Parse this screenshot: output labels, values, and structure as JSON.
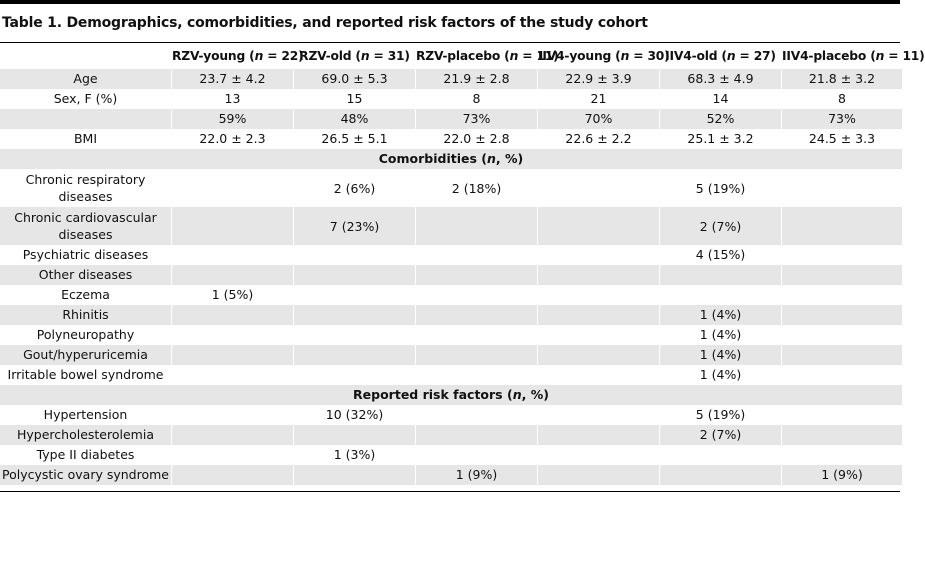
{
  "title": "Table 1. Demographics, comorbidities, and reported risk factors of the study cohort",
  "columns": [
    "",
    "RZV-young (n = 22)",
    "RZV-old (n = 31)",
    "RZV-placebo (n = 11)",
    "IIV4-young (n = 30)",
    "IIV4-old (n = 27)",
    "IIV4-placebo (n = 11)"
  ],
  "rows": [
    {
      "type": "data",
      "shade": true,
      "cells": [
        "Age",
        "23.7 ± 4.2",
        "69.0 ± 5.3",
        "21.9 ± 2.8",
        "22.9 ± 3.9",
        "68.3 ± 4.9",
        "21.8 ± 3.2"
      ]
    },
    {
      "type": "data",
      "shade": false,
      "cells": [
        "Sex, F (%)",
        "13",
        "15",
        "8",
        "21",
        "14",
        "8"
      ]
    },
    {
      "type": "data",
      "shade": true,
      "cells": [
        "",
        "59%",
        "48%",
        "73%",
        "70%",
        "52%",
        "73%"
      ]
    },
    {
      "type": "data",
      "shade": false,
      "cells": [
        "BMI",
        "22.0 ± 2.3",
        "26.5 ± 5.1",
        "22.0 ± 2.8",
        "22.6 ± 2.2",
        "25.1 ± 3.2",
        "24.5 ± 3.3"
      ]
    },
    {
      "type": "section",
      "shade": true,
      "label": "Comorbidities (n, %)"
    },
    {
      "type": "data",
      "shade": false,
      "wrap": true,
      "cells": [
        "Chronic respiratory diseases",
        "",
        "2 (6%)",
        "2 (18%)",
        "",
        "5 (19%)",
        ""
      ]
    },
    {
      "type": "data",
      "shade": true,
      "wrap": true,
      "cells": [
        "Chronic cardiovascular diseases",
        "",
        "7 (23%)",
        "",
        "",
        "2 (7%)",
        ""
      ]
    },
    {
      "type": "data",
      "shade": false,
      "cells": [
        "Psychiatric diseases",
        "",
        "",
        "",
        "",
        "4 (15%)",
        ""
      ]
    },
    {
      "type": "data",
      "shade": true,
      "cells": [
        "Other diseases",
        "",
        "",
        "",
        "",
        "",
        ""
      ]
    },
    {
      "type": "data",
      "shade": false,
      "cells": [
        "Eczema",
        "1 (5%)",
        "",
        "",
        "",
        "",
        ""
      ]
    },
    {
      "type": "data",
      "shade": true,
      "cells": [
        "Rhinitis",
        "",
        "",
        "",
        "",
        "1 (4%)",
        ""
      ]
    },
    {
      "type": "data",
      "shade": false,
      "cells": [
        "Polyneuropathy",
        "",
        "",
        "",
        "",
        "1 (4%)",
        ""
      ]
    },
    {
      "type": "data",
      "shade": true,
      "cells": [
        "Gout/hyperuricemia",
        "",
        "",
        "",
        "",
        "1 (4%)",
        ""
      ]
    },
    {
      "type": "data",
      "shade": false,
      "cells": [
        "Irritable bowel syndrome",
        "",
        "",
        "",
        "",
        "1 (4%)",
        ""
      ]
    },
    {
      "type": "section",
      "shade": true,
      "label": "Reported risk factors (n, %)"
    },
    {
      "type": "data",
      "shade": false,
      "cells": [
        "Hypertension",
        "",
        "10 (32%)",
        "",
        "",
        "5 (19%)",
        ""
      ]
    },
    {
      "type": "data",
      "shade": true,
      "cells": [
        "Hypercholesterolemia",
        "",
        "",
        "",
        "",
        "2 (7%)",
        ""
      ]
    },
    {
      "type": "data",
      "shade": false,
      "cells": [
        "Type II diabetes",
        "",
        "1 (3%)",
        "",
        "",
        "",
        ""
      ]
    },
    {
      "type": "data",
      "shade": true,
      "cells": [
        "Polycystic ovary syndrome",
        "",
        "",
        "1 (9%)",
        "",
        "",
        "1 (9%)"
      ]
    }
  ]
}
